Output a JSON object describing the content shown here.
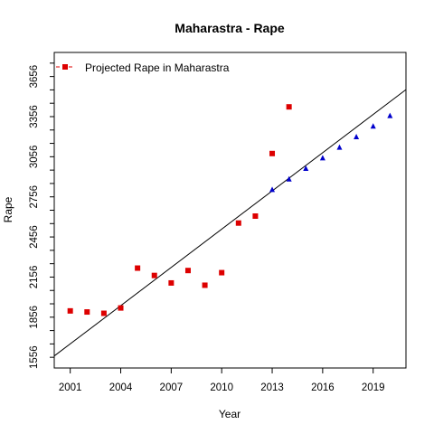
{
  "chart_data": {
    "type": "scatter",
    "title": "Maharastra  -  Rape",
    "xlabel": "Year",
    "ylabel": "Rape",
    "xlim": [
      2000.05,
      2020.95
    ],
    "ylim": [
      1476,
      3836
    ],
    "x_ticks": [
      2001,
      2004,
      2007,
      2010,
      2013,
      2016,
      2019
    ],
    "y_ticks": [
      1556,
      1656,
      1756,
      1856,
      1956,
      2056,
      2156,
      2256,
      2356,
      2456,
      2556,
      2656,
      2756,
      2856,
      2956,
      3056,
      3156,
      3256,
      3356,
      3456,
      3556,
      3656,
      3756
    ],
    "y_tick_labels": [
      1556,
      1856,
      2156,
      2456,
      2756,
      3056,
      3356,
      3656
    ],
    "grid": false,
    "legend_position": "top-left",
    "series": [
      {
        "name": "Projected Rape  in  Maharastra",
        "marker": "square",
        "color": "#dd0000",
        "x": [
          2001,
          2002,
          2003,
          2004,
          2005,
          2006,
          2007,
          2008,
          2009,
          2010,
          2011,
          2012,
          2013,
          2014
        ],
        "y": [
          1903,
          1895,
          1885,
          1925,
          2223,
          2168,
          2112,
          2205,
          2095,
          2189,
          2560,
          2612,
          3080,
          3429
        ]
      },
      {
        "marker": "triangle",
        "color": "#0000cc",
        "x": [
          2013,
          2014,
          2015,
          2016,
          2017,
          2018,
          2019,
          2020
        ],
        "y": [
          2809,
          2888,
          2967,
          3046,
          3125,
          3204,
          3283,
          3362
        ]
      }
    ],
    "trend_line": {
      "color": "#000000",
      "x": [
        2000.05,
        2020.95
      ],
      "y": [
        1566,
        3558
      ]
    }
  }
}
